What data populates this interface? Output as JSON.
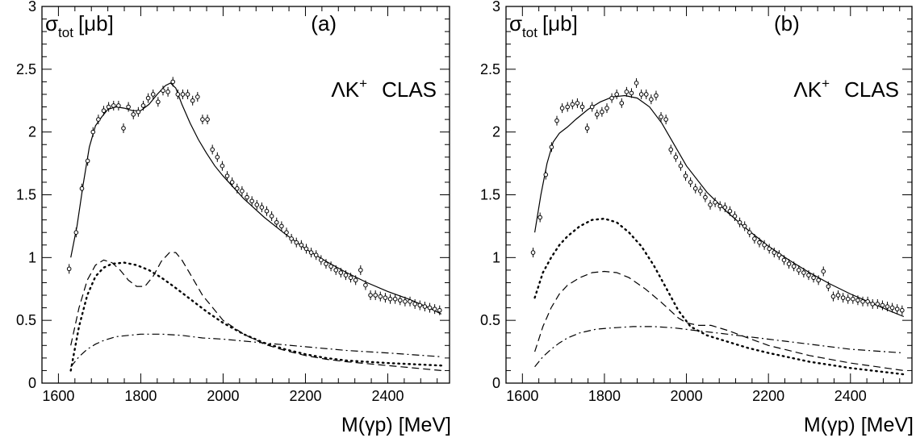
{
  "chart_data": [
    {
      "type": "scatter",
      "panel_label": "(a)",
      "annotation_lambda": "ΛK",
      "annotation_sup": "+",
      "annotation_rest": "CLAS",
      "ylabel_main": "σ",
      "ylabel_sub": "tot",
      "ylabel_unit": "[μb]",
      "xlabel": "M(γp)  [MeV]",
      "xlim": [
        1560,
        2550
      ],
      "ylim": [
        0,
        3
      ],
      "x_ticks": [
        1600,
        1800,
        2000,
        2200,
        2400
      ],
      "y_ticks": [
        0,
        0.5,
        1,
        1.5,
        2,
        2.5,
        3
      ],
      "y_tick_labels": [
        "0",
        "0.5",
        "1",
        "1.5",
        "2",
        "2.5",
        "3"
      ],
      "grid": false,
      "series": [
        {
          "style": "solid",
          "x": [
            1630,
            1645,
            1660,
            1675,
            1690,
            1705,
            1720,
            1740,
            1760,
            1780,
            1800,
            1820,
            1840,
            1860,
            1872,
            1885,
            1900,
            1920,
            1940,
            1960,
            1980,
            2000,
            2050,
            2100,
            2150,
            2200,
            2250,
            2300,
            2350,
            2400,
            2450,
            2500,
            2530
          ],
          "y": [
            1.0,
            1.25,
            1.58,
            1.88,
            2.05,
            2.12,
            2.18,
            2.2,
            2.19,
            2.17,
            2.17,
            2.22,
            2.3,
            2.37,
            2.39,
            2.35,
            2.22,
            2.07,
            1.94,
            1.83,
            1.73,
            1.65,
            1.47,
            1.32,
            1.19,
            1.07,
            0.97,
            0.88,
            0.8,
            0.73,
            0.67,
            0.6,
            0.55
          ]
        },
        {
          "style": "dashed",
          "x": [
            1630,
            1650,
            1670,
            1690,
            1710,
            1730,
            1750,
            1770,
            1790,
            1810,
            1830,
            1850,
            1870,
            1885,
            1900,
            1920,
            1950,
            2000,
            2050,
            2100,
            2150,
            2200,
            2250,
            2300,
            2400,
            2530
          ],
          "y": [
            0.3,
            0.6,
            0.82,
            0.94,
            0.98,
            0.96,
            0.9,
            0.82,
            0.77,
            0.77,
            0.85,
            0.97,
            1.04,
            1.04,
            0.98,
            0.87,
            0.7,
            0.5,
            0.39,
            0.31,
            0.26,
            0.22,
            0.19,
            0.17,
            0.14,
            0.1
          ]
        },
        {
          "style": "dotted",
          "x": [
            1630,
            1650,
            1670,
            1690,
            1710,
            1730,
            1760,
            1790,
            1820,
            1850,
            1880,
            1920,
            1960,
            2000,
            2050,
            2100,
            2150,
            2200,
            2250,
            2300,
            2400,
            2530
          ],
          "y": [
            0.1,
            0.45,
            0.7,
            0.85,
            0.92,
            0.95,
            0.96,
            0.94,
            0.9,
            0.84,
            0.77,
            0.67,
            0.57,
            0.48,
            0.39,
            0.32,
            0.27,
            0.23,
            0.2,
            0.18,
            0.16,
            0.14
          ]
        },
        {
          "style": "dashdot",
          "x": [
            1630,
            1650,
            1670,
            1690,
            1710,
            1740,
            1770,
            1800,
            1850,
            1900,
            1950,
            2000,
            2100,
            2200,
            2300,
            2400,
            2530
          ],
          "y": [
            0.13,
            0.21,
            0.27,
            0.31,
            0.34,
            0.37,
            0.38,
            0.39,
            0.39,
            0.38,
            0.36,
            0.35,
            0.32,
            0.29,
            0.26,
            0.24,
            0.21
          ]
        },
        {
          "style": "points",
          "x": [
            1626,
            1643,
            1657,
            1671,
            1684,
            1697,
            1710,
            1722,
            1734,
            1746,
            1758,
            1770,
            1782,
            1794,
            1806,
            1818,
            1830,
            1842,
            1854,
            1866,
            1878,
            1890,
            1902,
            1914,
            1926,
            1938,
            1950,
            1962,
            1974,
            1986,
            1998,
            2010,
            2022,
            2034,
            2046,
            2058,
            2070,
            2082,
            2094,
            2106,
            2118,
            2130,
            2142,
            2154,
            2166,
            2178,
            2190,
            2202,
            2214,
            2226,
            2238,
            2250,
            2262,
            2274,
            2286,
            2298,
            2310,
            2322,
            2334,
            2346,
            2358,
            2370,
            2382,
            2394,
            2406,
            2418,
            2430,
            2442,
            2454,
            2466,
            2478,
            2490,
            2502,
            2514,
            2526
          ],
          "y": [
            0.91,
            1.2,
            1.55,
            1.77,
            2.0,
            2.1,
            2.17,
            2.2,
            2.21,
            2.21,
            2.03,
            2.2,
            2.14,
            2.16,
            2.21,
            2.27,
            2.3,
            2.24,
            2.33,
            2.32,
            2.4,
            2.3,
            2.3,
            2.3,
            2.25,
            2.28,
            2.1,
            2.1,
            1.86,
            1.8,
            1.73,
            1.65,
            1.6,
            1.55,
            1.53,
            1.48,
            1.45,
            1.42,
            1.4,
            1.37,
            1.33,
            1.28,
            1.25,
            1.2,
            1.15,
            1.12,
            1.1,
            1.07,
            1.04,
            1.02,
            0.98,
            0.95,
            0.93,
            0.9,
            0.88,
            0.86,
            0.84,
            0.82,
            0.9,
            0.78,
            0.7,
            0.7,
            0.69,
            0.68,
            0.67,
            0.67,
            0.66,
            0.65,
            0.65,
            0.63,
            0.62,
            0.61,
            0.6,
            0.59,
            0.58
          ]
        }
      ]
    },
    {
      "type": "scatter",
      "panel_label": "(b)",
      "annotation_lambda": "ΛK",
      "annotation_sup": "+",
      "annotation_rest": "CLAS",
      "ylabel_main": "σ",
      "ylabel_sub": "tot",
      "ylabel_unit": "[μb]",
      "xlabel": "M(γp)  [MeV]",
      "xlim": [
        1560,
        2550
      ],
      "ylim": [
        0,
        3
      ],
      "x_ticks": [
        1600,
        1800,
        2000,
        2200,
        2400
      ],
      "y_ticks": [
        0,
        0.5,
        1,
        1.5,
        2,
        2.5,
        3
      ],
      "y_tick_labels": [
        "0",
        "0.5",
        "1",
        "1.5",
        "2",
        "2.5",
        "3"
      ],
      "grid": false,
      "series": [
        {
          "style": "solid",
          "x": [
            1630,
            1645,
            1660,
            1675,
            1690,
            1710,
            1730,
            1760,
            1790,
            1820,
            1850,
            1880,
            1910,
            1940,
            1970,
            2000,
            2050,
            2100,
            2150,
            2200,
            2250,
            2300,
            2350,
            2400,
            2450,
            2500,
            2530
          ],
          "y": [
            1.2,
            1.5,
            1.75,
            1.92,
            1.99,
            2.04,
            2.1,
            2.18,
            2.24,
            2.28,
            2.29,
            2.27,
            2.2,
            2.07,
            1.9,
            1.73,
            1.52,
            1.36,
            1.22,
            1.09,
            0.98,
            0.88,
            0.79,
            0.71,
            0.64,
            0.57,
            0.53
          ]
        },
        {
          "style": "dashed",
          "x": [
            1630,
            1650,
            1670,
            1690,
            1710,
            1740,
            1770,
            1800,
            1830,
            1860,
            1900,
            1940,
            1980,
            2000,
            2030,
            2060,
            2100,
            2150,
            2200,
            2300,
            2400,
            2530
          ],
          "y": [
            0.25,
            0.45,
            0.6,
            0.71,
            0.78,
            0.84,
            0.88,
            0.89,
            0.88,
            0.84,
            0.75,
            0.64,
            0.52,
            0.48,
            0.46,
            0.46,
            0.42,
            0.36,
            0.3,
            0.22,
            0.16,
            0.1
          ]
        },
        {
          "style": "dotted",
          "x": [
            1630,
            1650,
            1670,
            1690,
            1710,
            1740,
            1770,
            1800,
            1830,
            1860,
            1890,
            1920,
            1950,
            1980,
            2010,
            2050,
            2100,
            2150,
            2200,
            2300,
            2400,
            2530
          ],
          "y": [
            0.68,
            0.88,
            1.0,
            1.1,
            1.17,
            1.25,
            1.3,
            1.31,
            1.28,
            1.2,
            1.09,
            0.94,
            0.76,
            0.58,
            0.45,
            0.38,
            0.33,
            0.28,
            0.24,
            0.17,
            0.12,
            0.07
          ]
        },
        {
          "style": "dashdot",
          "x": [
            1630,
            1650,
            1670,
            1690,
            1710,
            1740,
            1780,
            1820,
            1870,
            1920,
            1970,
            2020,
            2100,
            2200,
            2300,
            2400,
            2530
          ],
          "y": [
            0.13,
            0.21,
            0.27,
            0.32,
            0.36,
            0.4,
            0.43,
            0.44,
            0.45,
            0.45,
            0.44,
            0.42,
            0.39,
            0.35,
            0.31,
            0.27,
            0.24
          ]
        },
        {
          "style": "points",
          "x": [
            1626,
            1643,
            1657,
            1671,
            1684,
            1697,
            1710,
            1722,
            1734,
            1746,
            1758,
            1770,
            1782,
            1794,
            1806,
            1818,
            1830,
            1842,
            1854,
            1866,
            1878,
            1890,
            1902,
            1914,
            1926,
            1938,
            1950,
            1962,
            1974,
            1986,
            1998,
            2010,
            2022,
            2034,
            2046,
            2058,
            2070,
            2082,
            2094,
            2106,
            2118,
            2130,
            2142,
            2154,
            2166,
            2178,
            2190,
            2202,
            2214,
            2226,
            2238,
            2250,
            2262,
            2274,
            2286,
            2298,
            2310,
            2322,
            2334,
            2346,
            2358,
            2370,
            2382,
            2394,
            2406,
            2418,
            2430,
            2442,
            2454,
            2466,
            2478,
            2490,
            2502,
            2514,
            2526
          ],
          "y": [
            1.04,
            1.32,
            1.66,
            1.88,
            2.09,
            2.19,
            2.2,
            2.22,
            2.23,
            2.2,
            2.03,
            2.2,
            2.14,
            2.16,
            2.19,
            2.27,
            2.3,
            2.23,
            2.32,
            2.31,
            2.39,
            2.3,
            2.3,
            2.26,
            2.29,
            2.12,
            2.1,
            1.86,
            1.8,
            1.73,
            1.65,
            1.6,
            1.55,
            1.53,
            1.48,
            1.42,
            1.44,
            1.41,
            1.4,
            1.37,
            1.33,
            1.28,
            1.25,
            1.2,
            1.15,
            1.12,
            1.1,
            1.07,
            1.04,
            1.02,
            0.98,
            0.95,
            0.93,
            0.9,
            0.88,
            0.86,
            0.84,
            0.82,
            0.89,
            0.77,
            0.69,
            0.7,
            0.68,
            0.67,
            0.67,
            0.66,
            0.65,
            0.65,
            0.63,
            0.63,
            0.62,
            0.61,
            0.6,
            0.59,
            0.58
          ]
        }
      ]
    }
  ]
}
